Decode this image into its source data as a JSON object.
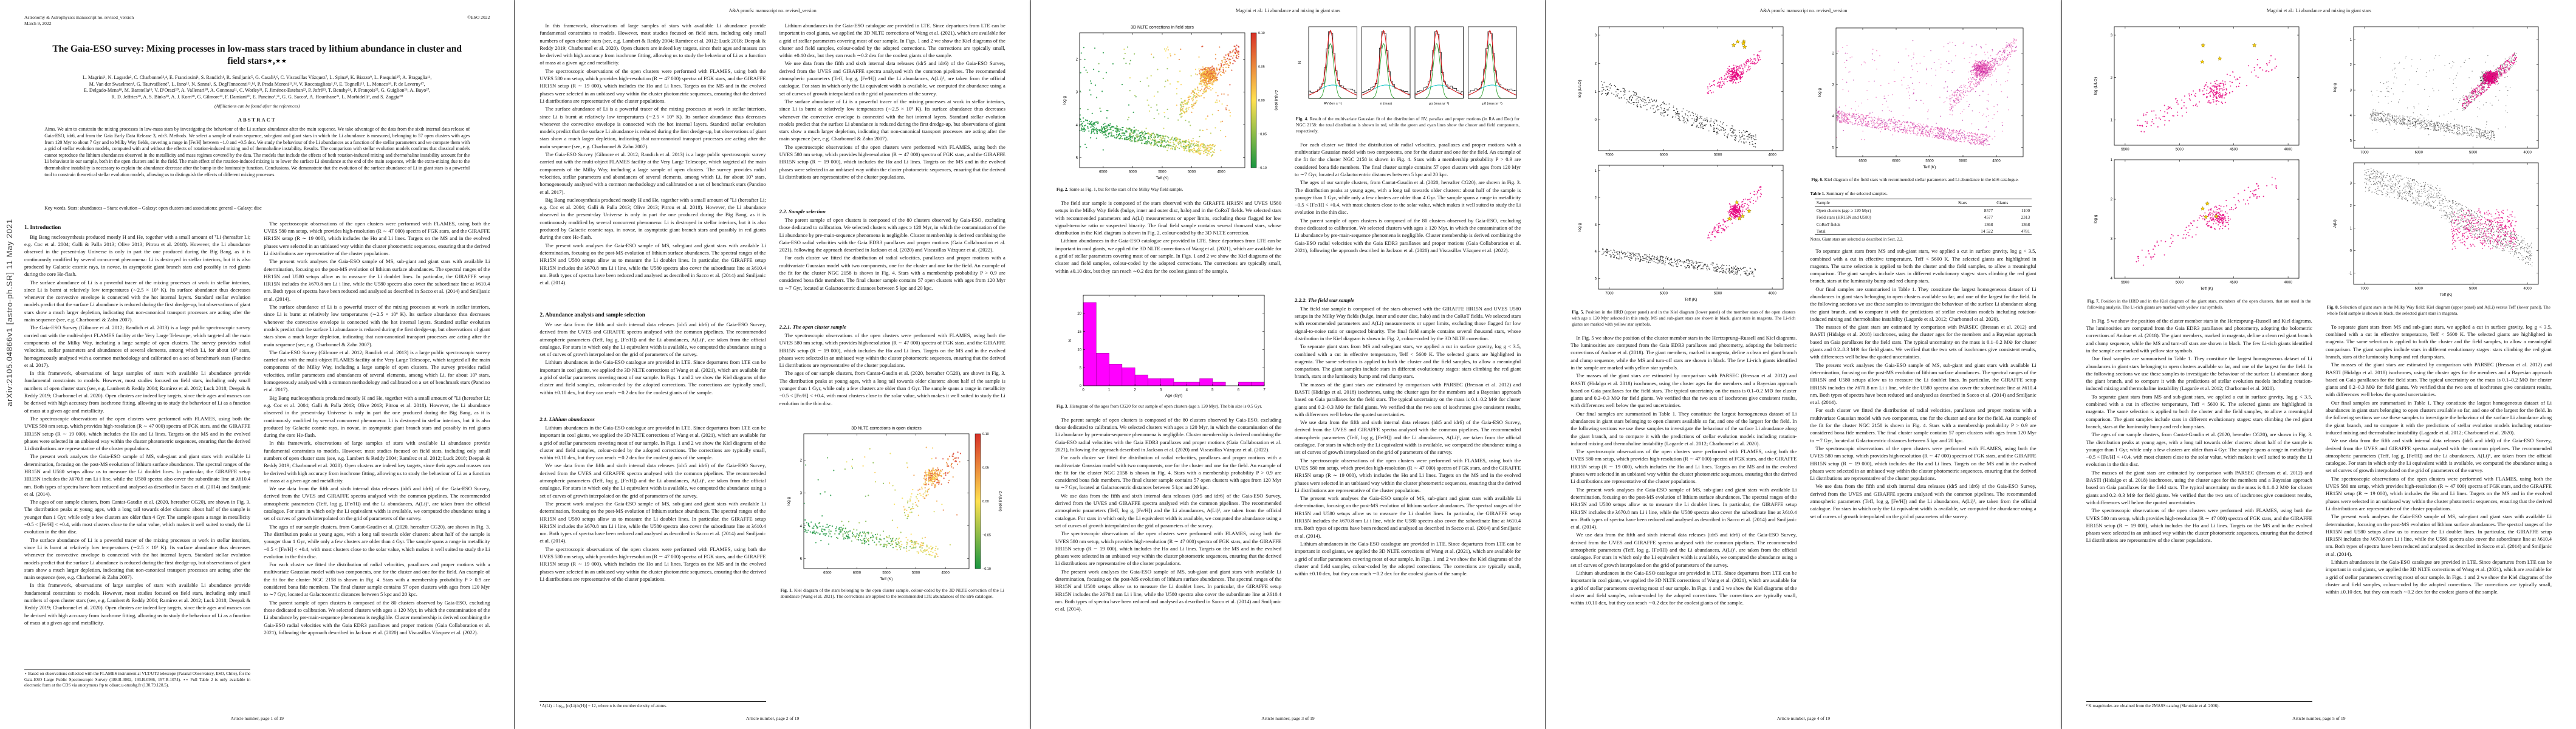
{
  "meta": {
    "manuscript": "Astronomy & Astrophysics manuscript no. revised_version",
    "date": "March 9, 2022",
    "eso": "©ESO 2022",
    "proofs_header": "A&A proofs: manuscript no. revised_version",
    "author_header": "Magrini et al.: Li abundance and mixing in giant stars",
    "arxiv": "arXiv:2105.04866v1 [astro-ph.SR] 11 May 2021",
    "footers": [
      "Article number, page 1 of 19",
      "Article number, page 2 of 19",
      "Article number, page 3 of 19",
      "Article number, page 4 of 19",
      "Article number, page 5 of 19"
    ]
  },
  "title_page": {
    "title": "The Gaia-ESO survey: Mixing processes in low-mass stars traced by lithium abundance in cluster and field stars⋆,⋆⋆",
    "authors": [
      "L. Magrini¹, N. Lagarde², C. Charbonnel³,⁴, E. Franciosini¹, S. Randich¹, R. Smiljanic⁵, G. Casali¹,⁶, C. Viscasillas Vázquez⁷, L. Spina⁸, K. Biazzo⁹, L. Pasquini¹⁰, A. Bragaglia¹¹,",
      "M. Van der Swaelmen¹, G. Tautvaišienė⁷, L. Inno¹², N. Sanna¹, S. Degl'Innocenti¹³,¹⁴, P. Prada Moroni¹³,¹⁴, V. Roccatagliata¹,¹³, E. Tognelli¹⁵, L. Monaco¹⁶, P. de Laverny¹⁷,",
      "E. Delgado-Mena¹⁸, M. Baratella¹⁹, V. D'Orazi²⁰, A. Vallenari²⁰, A. Gonneau²¹, C. Worley²¹, F. Jiménez-Esteban²², P. Jofré²³, T. Bensby²⁴, P. François²⁵, G. Guiglion²⁶, A. Bayo²⁷,",
      "R. D. Jeffries²⁸, A. S. Binks²⁸, A. J. Korn²⁹, G. Gilmore²¹, F. Damiani³⁰, E. Pancino¹,³¹, G. G. Sacco¹, A. Hourihane²¹, L. Morbidelli¹, and S. Zaggia²⁰"
    ],
    "affil_note": "(Affiliations can be found after the references)",
    "abstract_label": "ABSTRACT",
    "abstract": "Aims. We aim to constrain the mixing processes in low-mass stars by investigating the behaviour of the Li surface abundance after the main sequence. We take advantage of the data from the sixth internal data release of Gaia-ESO, idr6, and from the Gaia Early Data Release 3, edr3. Methods. We select a sample of main sequence, sub-giant and giant stars in which the Li abundance is measured, belonging to 57 open clusters with ages from 120 Myr to about 7 Gyr and to Milky Way fields, covering a range in [Fe/H] between −1.0 and +0.5 dex. We study the behaviour of the Li abundances as a function of the stellar parameters and we compare them with a grid of stellar evolution models, computed with and without the effects of rotation-induced mixing and of thermohaline instability. Results. The comparison with stellar evolution models confirms that classical models cannot reproduce the lithium abundances observed in the metallicity and mass regimes covered by the data. The models that include the effects of both rotation-induced mixing and thermohaline instability account for the Li behaviour in our sample, both in the open clusters and in the field. The main effect of the rotation-induced mixing is to lower the surface Li abundance at the end of the main sequence, while the extra-mixing due to the thermohaline instability is necessary to explain the abundance decrease after the bump in the luminosity function. Conclusions. We demonstrate that the evolution of the surface abundance of Li in giant stars is a powerful tool to constrain theoretical stellar evolution models, allowing us to distinguish the effects of different mixing processes.",
    "keywords": "Key words.  Stars: abundances – Stars: evolution – Galaxy: open clusters and associations: general – Galaxy: disc"
  },
  "sections": {
    "intro": "1. Introduction",
    "s2": "2. Abundance analysis and sample selection",
    "s21": "2.1. Lithium abundances",
    "s22": "2.2. Sample selection",
    "s221": "2.2.1. The open cluster sample",
    "s222": "2.2.2. The field star sample"
  },
  "paragraphs": {
    "p1": "Big Bang nucleosynthesis produced mostly H and He, together with a small amount of ⁷Li (hereafter Li; e.g. Coc et al. 2004; Galli & Palla 2013; Olive 2013; Pitrou et al. 2018). However, the Li abundance observed in the present-day Universe is only in part the one produced during the Big Bang, as it is continuously modified by several concurrent phenomena: Li is destroyed in stellar interiors, but it is also produced by Galactic cosmic rays, in novae, in asymptotic giant branch stars and possibly in red giants during the core He-flash.",
    "p2": "The surface abundance of Li is a powerful tracer of the mixing processes at work in stellar interiors, since Li is burnt at relatively low temperatures (∼2.5 × 10⁶ K). Its surface abundance thus decreases whenever the convective envelope is connected with the hot internal layers. Standard stellar evolution models predict that the surface Li abundance is reduced during the first dredge-up, but observations of giant stars show a much larger depletion, indicating that non-canonical transport processes are acting after the main sequence (see, e.g. Charbonnel & Zahn 2007).",
    "p3": "The Gaia-ESO Survey (Gilmore et al. 2012; Randich et al. 2013) is a large public spectroscopic survey carried out with the multi-object FLAMES facility at the Very Large Telescope, which targeted all the main components of the Milky Way, including a large sample of open clusters. The survey provides radial velocities, stellar parameters and abundances of several elements, among which Li, for about 10⁵ stars, homogeneously analysed with a common methodology and calibrated on a set of benchmark stars (Pancino et al. 2017).",
    "p4": "In this framework, observations of large samples of stars with available Li abundance provide fundamental constraints to models. However, most studies focused on field stars, including only small numbers of open cluster stars (see, e.g. Lambert & Reddy 2004; Ramírez et al. 2012; Luck 2018; Deepak & Reddy 2019; Charbonnel et al. 2020). Open clusters are indeed key targets, since their ages and masses can be derived with high accuracy from isochrone fitting, allowing us to study the behaviour of Li as a function of mass at a given age and metallicity.",
    "p5": "The present work analyses the Gaia-ESO sample of MS, sub-giant and giant stars with available Li determination, focusing on the post-MS evolution of lithium surface abundances. The spectral ranges of the HR15N and U580 setups allow us to measure the Li doublet lines. In particular, the GIRAFFE setup HR15N includes the λ670.8 nm Li i line, while the U580 spectra also cover the subordinate line at λ610.4 nm. Both types of spectra have been reduced and analysed as described in Sacco et al. (2014) and Smiljanic et al. (2014).",
    "p6": "We use data from the fifth and sixth internal data releases (idr5 and idr6) of the Gaia-ESO Survey, derived from the UVES and GIRAFFE spectra analysed with the common pipelines. The recommended atmospheric parameters (Teff, log g, [Fe/H]) and the Li abundances, A(Li)¹, are taken from the official catalogue. For stars in which only the Li equivalent width is available, we computed the abundance using a set of curves of growth interpolated on the grid of parameters of the survey.",
    "p7": "Lithium abundances in the Gaia-ESO catalogue are provided in LTE. Since departures from LTE can be important in cool giants, we applied the 3D NLTE corrections of Wang et al. (2021), which are available for a grid of stellar parameters covering most of our sample. In Figs. 1 and 2 we show the Kiel diagrams of the cluster and field samples, colour-coded by the adopted corrections. The corrections are typically small, within ±0.10 dex, but they can reach ∼0.2 dex for the coolest giants of the sample.",
    "p8": "The parent sample of open clusters is composed of the 80 clusters observed by Gaia-ESO, excluding those dedicated to calibration. We selected clusters with ages ≥ 120 Myr, in which the contamination of the Li abundance by pre-main-sequence phenomena is negligible. Cluster membership is derived combining the Gaia-ESO radial velocities with the Gaia EDR3 parallaxes and proper motions (Gaia Collaboration et al. 2021), following the approach described in Jackson et al. (2020) and Viscasillas Vázquez et al. (2022).",
    "p9": "For each cluster we fitted the distribution of radial velocities, parallaxes and proper motions with a multivariate Gaussian model with two components, one for the cluster and one for the field. An example of the fit for the cluster NGC 2158 is shown in Fig. 4. Stars with a membership probability P > 0.9 are considered bona fide members. The final cluster sample contains 57 open clusters with ages from 120 Myr to ∼7 Gyr, located at Galactocentric distances between 5 kpc and 20 kpc.",
    "p10": "The ages of our sample clusters, from Cantat-Gaudin et al. (2020, hereafter CG20), are shown in Fig. 3. The distribution peaks at young ages, with a long tail towards older clusters: about half of the sample is younger than 1 Gyr, while only a few clusters are older than 4 Gyr. The sample spans a range in metallicity −0.5 < [Fe/H] < +0.4, with most clusters close to the solar value, which makes it well suited to study the Li evolution in the thin disc.",
    "p11": "The field star sample is composed of the stars observed with the GIRAFFE HR15N and UVES U580 setups in the Milky Way fields (bulge, inner and outer disc, halo) and in the CoRoT fields. We selected stars with recommended parameters and A(Li) measurements or upper limits, excluding those flagged for low signal-to-noise ratio or suspected binarity. The final field sample contains several thousand stars, whose distribution in the Kiel diagram is shown in Fig. 2, colour-coded by the 3D NLTE correction.",
    "p12": "To separate giant stars from MS and sub-giant stars, we applied a cut in surface gravity, log g < 3.5, combined with a cut in effective temperature, Teff < 5600 K. The selected giants are highlighted in magenta. The same selection is applied to both the cluster and the field samples, to allow a meaningful comparison. The giant samples include stars in different evolutionary stages: stars climbing the red giant branch, stars at the luminosity bump and red clump stars.",
    "p13": "In Fig. 5 we show the position of the cluster member stars in the Hertzsprung–Russell and Kiel diagrams. The luminosities are computed from the Gaia EDR3 parallaxes and photometry, adopting the bolometric corrections of Andrae et al. (2018). The giant members, marked in magenta, define a clean red giant branch and clump sequence, while the MS and turn-off stars are shown in black. The few Li-rich giants identified in the sample are marked with yellow star symbols.",
    "p14": "The masses of the giant stars are estimated by comparison with PARSEC (Bressan et al. 2012) and BASTI (Hidalgo et al. 2018) isochrones, using the cluster ages for the members and a Bayesian approach based on Gaia parallaxes for the field stars. The typical uncertainty on the mass is 0.1–0.2 M⊙ for cluster giants and 0.2–0.3 M⊙ for field giants. We verified that the two sets of isochrones give consistent results, with differences well below the quoted uncertainties.",
    "p15": "Our final samples are summarised in Table 1. They constitute the largest homogeneous dataset of Li abundances in giant stars belonging to open clusters available so far, and one of the largest for the field. In the following sections we use these samples to investigate the behaviour of the surface Li abundance along the giant branch, and to compare it with the predictions of stellar evolution models including rotation-induced mixing and thermohaline instability (Lagarde et al. 2012; Charbonnel et al. 2020).",
    "p16": "The spectroscopic observations of the open clusters were performed with FLAMES, using both the UVES 580 nm setup, which provides high-resolution (R ∼ 47 000) spectra of FGK stars, and the GIRAFFE HR15N setup (R ∼ 19 000), which includes the Hα and Li lines. Targets on the MS and in the evolved phases were selected in an unbiased way within the cluster photometric sequences, ensuring that the derived Li distributions are representative of the cluster populations."
  },
  "footnotes": {
    "fn1": "⋆ Based on observations collected with the FLAMES instrument at VLT/UT2 telescope (Paranal Observatory, ESO, Chile), for the Gaia-ESO Large Public Spectroscopic Survey (188.B-3002, 193.B-0936, 197.B-1074). ⋆⋆ Full Table 2 is only available in electronic form at the CDS via anonymous ftp to cdsarc.u-strasbg.fr (130.79.128.5).",
    "fn2": "¹ A(Li) = log₁₀ [n(Li)/n(H)] + 12, where n is the number density of atoms.",
    "fn3": "² K magnitudes are obtained from the 2MASS catalog (Skrutskie et al. 2006)."
  },
  "figures": {
    "fig1": {
      "kind": "kiel_cbar",
      "seed": 11,
      "n": 650,
      "title": "3D NLTE corrections in open clusters",
      "xlabel": "Teff (K)",
      "ylabel": "log g",
      "xrange": [
        6900,
        4100
      ],
      "yrange": [
        1.2,
        5.3
      ],
      "xticks": [
        6500,
        6000,
        5500,
        5000,
        4500
      ],
      "yticks": [
        2,
        3,
        4,
        5
      ],
      "cbar_label": "Δ A(Li) (dex)",
      "cbar_ticks": [
        "0.10",
        "0.05",
        "0.00",
        "−0.05",
        "−0.10"
      ],
      "caption_label": "Fig. 1.",
      "caption": "Kiel diagram of the stars belonging to the open cluster sample, colour-coded by the 3D NLTE correction of the Li abundance (Wang et al. 2021). The corrections are applied to the recommended LTE abundances of the idr6 catalogue."
    },
    "fig2": {
      "kind": "kiel_cbar",
      "seed": 22,
      "n": 1500,
      "title": "3D NLTE corrections in field stars",
      "xlabel": "Teff (K)",
      "ylabel": "log g",
      "xrange": [
        6900,
        4100
      ],
      "yrange": [
        1.2,
        5.3
      ],
      "xticks": [
        6500,
        6000,
        5500,
        5000,
        4500
      ],
      "yticks": [
        2,
        3,
        4,
        5
      ],
      "cbar_label": "Δ A(Li) (dex)",
      "cbar_ticks": [
        "0.10",
        "0.05",
        "0.00",
        "−0.05",
        "−0.10"
      ],
      "caption_label": "Fig. 2.",
      "caption": "Same as Fig. 1, but for the stars of the Milky Way field sample."
    },
    "fig3": {
      "kind": "hist",
      "seed": 3,
      "color": "#ff00ff",
      "edge": "#8a008a",
      "xlabel": "Age (Gyr)",
      "ylabel": "N",
      "bin": 0.5,
      "xrange": [
        0,
        7
      ],
      "yrange": [
        25,
        0
      ],
      "xticks": [
        0,
        1,
        2,
        3,
        4,
        5,
        6,
        7
      ],
      "yticks": [
        0,
        5,
        10,
        15,
        20
      ],
      "values": [
        23,
        9,
        6,
        5,
        3,
        2,
        2,
        1,
        1,
        2,
        1,
        0,
        1,
        1
      ],
      "caption_label": "Fig. 3.",
      "caption": "Histogram of the ages from CG20 for our sample of open clusters (age ≥ 120 Myr). The bin size is 0.5 Gyr."
    },
    "fig4": {
      "kind": "gauss4",
      "seed": 4,
      "ylabel": "N",
      "colors": {
        "total": "#e41a1c",
        "cluster": "#2ca02c",
        "field": "#00c2c2"
      },
      "panels": [
        {
          "xlabel": "RV (km s⁻¹)"
        },
        {
          "xlabel": "π (mas)"
        },
        {
          "xlabel": "μα (mas yr⁻¹)"
        },
        {
          "xlabel": "μδ (mas yr⁻¹)"
        }
      ],
      "caption_label": "Fig. 4.",
      "caption": "Result of the multivariate Gaussian fit of the distribution of RV, parallax and proper motions (in RA and Dec) for NGC 2158: the total distribution is shown in red, while the green and cyan lines show the cluster and field components, respectively."
    },
    "fig5": {
      "kind": "cluster2",
      "seed": 5,
      "xlabel": "Teff (K)",
      "xrange": [
        7200,
        3800
      ],
      "xticks": [
        7000,
        6000,
        5000,
        4000
      ],
      "top": {
        "ylabel": "log (L/L⊙)",
        "yrange": [
          3.3,
          -1.1
        ],
        "yticks": [
          0,
          1,
          2,
          3
        ]
      },
      "bottom": {
        "ylabel": "log g",
        "yrange": [
          0.8,
          5.4
        ],
        "yticks": [
          1,
          2,
          3,
          4,
          5
        ]
      },
      "colors": {
        "ms": "#111111",
        "giant": "#e6007e",
        "lirich": "#ffd400"
      },
      "caption_label": "Fig. 5.",
      "caption": "Position in the HRD (upper panel) and in the Kiel diagram (lower panel) of the member stars of the open clusters with age ≥ 120 Myr selected in this study. MS and sub-giant stars are shown in black, giant stars in magenta. The Li-rich giants are marked with yellow star symbols."
    },
    "fig6": {
      "kind": "pink_kiel",
      "seed": 6,
      "n": 2100,
      "colors": {
        "main": "#f06ab8",
        "dark": "#b5179e"
      },
      "xlabel": "Teff (K)",
      "ylabel": "log g",
      "xrange": [
        6900,
        4100
      ],
      "yrange": [
        1.2,
        5.3
      ],
      "xticks": [
        6500,
        6000,
        5500,
        5000,
        4500
      ],
      "yticks": [
        2,
        3,
        4,
        5
      ],
      "caption_label": "Fig. 6.",
      "caption": "Kiel diagram of the field stars with recommended stellar parameters and Li abundance in the idr6 catalogue."
    },
    "fig7": {
      "kind": "giants2",
      "seed": 7,
      "xlabel": "Teff (K)",
      "xrange": [
        5600,
        3900
      ],
      "xticks": [
        5500,
        5000,
        4500,
        4000
      ],
      "top": {
        "ylabel": "log (L/L⊙)",
        "yrange": [
          3.2,
          0.4
        ],
        "yticks": [
          1,
          2,
          3
        ]
      },
      "bottom": {
        "ylabel": "log g",
        "yrange": [
          1.0,
          4.0
        ],
        "yticks": [
          1,
          2,
          3,
          4
        ]
      },
      "colors": {
        "giant": "#e6007e",
        "lirich": "#ffd400"
      },
      "caption_label": "Fig. 7.",
      "caption": "Position in the HRD and in the Kiel diagram of the giant stars, members of the open clusters, that are used in the following analysis. The Li-rich giants are marked with yellow star symbols."
    },
    "fig8": {
      "kind": "fieldsel",
      "seed": 8,
      "xlabel": "Teff (K)",
      "xrange": [
        7200,
        3800
      ],
      "xticks": [
        7000,
        6000,
        5000,
        4000
      ],
      "top": {
        "ylabel": "log g",
        "yrange": [
          0.5,
          5.3
        ],
        "yticks": [
          1,
          2,
          3,
          4,
          5
        ]
      },
      "bottom": {
        "ylabel": "A(Li)",
        "yrange": [
          3.9,
          -1.5
        ],
        "yticks": [
          -1,
          0,
          1,
          2,
          3
        ]
      },
      "colors": {
        "all": "#111111",
        "giant": "#e6007e"
      },
      "caption_label": "Fig. 8.",
      "caption": "Selection of giant stars in the Milky Way field: Kiel diagram (upper panel) and A(Li) versus Teff (lower panel). The whole field sample is shown in black, the selected giant stars in magenta."
    }
  },
  "table1": {
    "label": "Table 1.",
    "title": "Summary of the selected samples.",
    "columns": [
      "Sample",
      "Stars",
      "Giants"
    ],
    "rows": [
      [
        "Open clusters (age ≥ 120 Myr)",
        "8577",
        "1100"
      ],
      [
        "Field stars (HR15N and U580)",
        "4577",
        "2313"
      ],
      [
        "CoRoT fields",
        "1368",
        "1368"
      ],
      [
        "Total",
        "14 522",
        "4781"
      ]
    ],
    "notes": "Notes. Giant stars are selected as described in Sect. 2.2."
  }
}
